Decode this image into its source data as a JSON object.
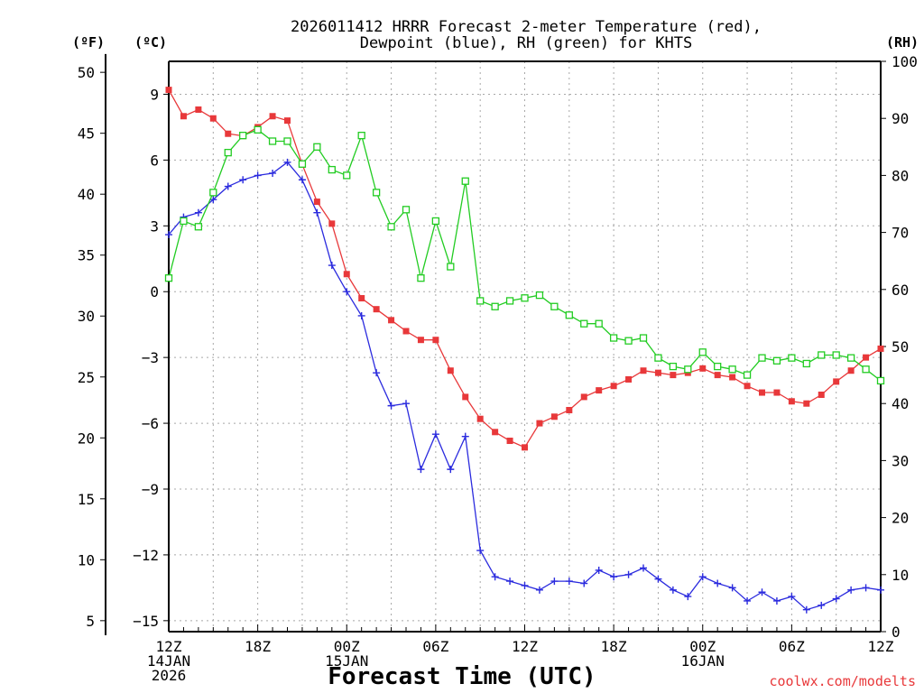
{
  "chart_data": {
    "type": "line",
    "title_lines": [
      "2026011412 HRRR Forecast 2-meter Temperature (red),",
      "Dewpoint (blue), RH (green) for KHTS"
    ],
    "xlabel": "Forecast Time (UTC)",
    "credit": "coolwx.com/modelts",
    "units": {
      "f": "(ºF)",
      "c": "(ºC)",
      "rh": "(RH)"
    },
    "x": [
      0,
      1,
      2,
      3,
      4,
      5,
      6,
      7,
      8,
      9,
      10,
      11,
      12,
      13,
      14,
      15,
      16,
      17,
      18,
      19,
      20,
      21,
      22,
      23,
      24,
      25,
      26,
      27,
      28,
      29,
      30,
      31,
      32,
      33,
      34,
      35,
      36,
      37,
      38,
      39,
      40,
      41,
      42,
      43,
      44,
      45,
      46,
      47,
      48
    ],
    "x_unit": "forecast hour from 12Z 14JAN 2026",
    "x_ticks": [
      {
        "h": 0,
        "lines": [
          "12Z",
          "14JAN",
          "2026"
        ]
      },
      {
        "h": 6,
        "lines": [
          "18Z"
        ]
      },
      {
        "h": 12,
        "lines": [
          "00Z",
          "15JAN"
        ]
      },
      {
        "h": 18,
        "lines": [
          "06Z"
        ]
      },
      {
        "h": 24,
        "lines": [
          "12Z"
        ]
      },
      {
        "h": 30,
        "lines": [
          "18Z"
        ]
      },
      {
        "h": 36,
        "lines": [
          "00Z",
          "16JAN"
        ]
      },
      {
        "h": 42,
        "lines": [
          "06Z"
        ]
      },
      {
        "h": 48,
        "lines": [
          "12Z"
        ]
      }
    ],
    "ylim_c": [
      -15.5,
      10.5
    ],
    "ylim_rh": [
      0,
      100
    ],
    "c_ticks": [
      "9",
      "6",
      "3",
      "0",
      "−3",
      "−6",
      "−9",
      "−12",
      "−15"
    ],
    "c_tick_values": [
      9,
      6,
      3,
      0,
      -3,
      -6,
      -9,
      -12,
      -15
    ],
    "f_ticks": [
      "50",
      "45",
      "40",
      "35",
      "30",
      "25",
      "20",
      "15",
      "10",
      "5"
    ],
    "f_tick_values": [
      50,
      45,
      40,
      35,
      30,
      25,
      20,
      15,
      10,
      5
    ],
    "rh_ticks": [
      "100",
      "90",
      "80",
      "70",
      "60",
      "50",
      "40",
      "30",
      "20",
      "10",
      "0"
    ],
    "rh_tick_values": [
      100,
      90,
      80,
      70,
      60,
      50,
      40,
      30,
      20,
      10,
      0
    ],
    "grid": true,
    "series": [
      {
        "name": "Temperature (red)",
        "color": "#e8383a",
        "marker": "filled-square",
        "axis": "c",
        "values": [
          9.2,
          8.0,
          8.3,
          7.9,
          7.2,
          7.1,
          7.5,
          8.0,
          7.8,
          5.8,
          4.1,
          3.1,
          0.8,
          -0.3,
          -0.8,
          -1.3,
          -1.8,
          -2.2,
          -2.2,
          -3.6,
          -4.8,
          -5.8,
          -6.4,
          -6.8,
          -7.1,
          -6.0,
          -5.7,
          -5.4,
          -4.8,
          -4.5,
          -4.3,
          -4.0,
          -3.6,
          -3.7,
          -3.8,
          -3.7,
          -3.5,
          -3.8,
          -3.9,
          -4.3,
          -4.6,
          -4.6,
          -5.0,
          -5.1,
          -4.7,
          -4.1,
          -3.6,
          -3.0,
          -2.6
        ]
      },
      {
        "name": "Dewpoint (blue)",
        "color": "#2b2bde",
        "marker": "plus",
        "axis": "c",
        "values": [
          2.6,
          3.4,
          3.6,
          4.2,
          4.8,
          5.1,
          5.3,
          5.4,
          5.9,
          5.1,
          3.6,
          1.2,
          0.0,
          -1.1,
          -3.7,
          -5.2,
          -5.1,
          -8.1,
          -6.5,
          -8.1,
          -6.6,
          -11.8,
          -13.0,
          -13.2,
          -13.4,
          -13.6,
          -13.2,
          -13.2,
          -13.3,
          -12.7,
          -13.0,
          -12.9,
          -12.6,
          -13.1,
          -13.6,
          -13.9,
          -13.0,
          -13.3,
          -13.5,
          -14.1,
          -13.7,
          -14.1,
          -13.9,
          -14.5,
          -14.3,
          -14.0,
          -13.6,
          -13.5,
          -13.6
        ]
      },
      {
        "name": "RH (green)",
        "color": "#22cc22",
        "marker": "open-square",
        "axis": "rh",
        "values": [
          62,
          72,
          71,
          77,
          84,
          87,
          88,
          86,
          86,
          82,
          85,
          81,
          80,
          87,
          77,
          71,
          74,
          62,
          72,
          64,
          79,
          58,
          57,
          58,
          58.5,
          59,
          57,
          55.5,
          54,
          54,
          51.5,
          51,
          51.5,
          48,
          46.5,
          46,
          49,
          46.5,
          46,
          45,
          48,
          47.5,
          48,
          47,
          48.5,
          48.5,
          48,
          46,
          44
        ]
      }
    ]
  }
}
